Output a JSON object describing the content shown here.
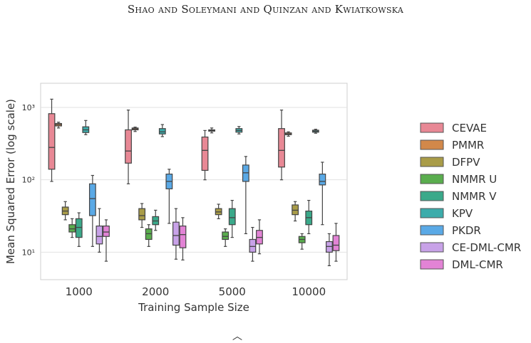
{
  "header": {
    "running_head": "Shao and Soleymani and Quinzan and Kwiatkowska"
  },
  "footer": {
    "mark": "︿"
  },
  "chart_data": {
    "type": "boxplot",
    "title": "",
    "xlabel": "Training Sample Size",
    "ylabel": "Mean Squared Error (log scale)",
    "yscale": "log",
    "ylim": [
      5,
      1800
    ],
    "yticks": [
      10,
      100,
      1000
    ],
    "ytick_labels": [
      "10¹",
      "10²",
      "10³"
    ],
    "grid": true,
    "legend_position": "right",
    "categories": [
      "1000",
      "2000",
      "5000",
      "10000"
    ],
    "series": [
      {
        "name": "CEVAE",
        "color": "#e88895",
        "boxes": [
          {
            "whislo": 95,
            "q1": 140,
            "med": 280,
            "q3": 820,
            "whishi": 1300
          },
          {
            "whislo": 88,
            "q1": 170,
            "med": 250,
            "q3": 490,
            "whishi": 920
          },
          {
            "whislo": 100,
            "q1": 135,
            "med": 255,
            "q3": 390,
            "whishi": 480
          },
          {
            "whislo": 100,
            "q1": 150,
            "med": 255,
            "q3": 510,
            "whishi": 920
          }
        ]
      },
      {
        "name": "PMMR",
        "color": "#d2884a",
        "boxes": [
          {
            "whislo": 520,
            "q1": 555,
            "med": 580,
            "q3": 600,
            "whishi": 625
          },
          {
            "whislo": 465,
            "q1": 490,
            "med": 505,
            "q3": 520,
            "whishi": 535
          },
          {
            "whislo": 445,
            "q1": 470,
            "med": 480,
            "q3": 490,
            "whishi": 520
          },
          {
            "whislo": 400,
            "q1": 420,
            "med": 430,
            "q3": 445,
            "whishi": 460
          }
        ]
      },
      {
        "name": "DFPV",
        "color": "#a99c48",
        "boxes": [
          {
            "whislo": 28,
            "q1": 33,
            "med": 37,
            "q3": 42,
            "whishi": 50
          },
          {
            "whislo": 22,
            "q1": 28,
            "med": 32,
            "q3": 40,
            "whishi": 47
          },
          {
            "whislo": 29,
            "q1": 33,
            "med": 36,
            "q3": 40,
            "whishi": 46
          },
          {
            "whislo": 27,
            "q1": 33,
            "med": 38,
            "q3": 45,
            "whishi": 50
          }
        ]
      },
      {
        "name": "NMMR U",
        "color": "#5aad4e",
        "boxes": [
          {
            "whislo": 16,
            "q1": 19,
            "med": 21,
            "q3": 24,
            "whishi": 29
          },
          {
            "whislo": 12,
            "q1": 15,
            "med": 18,
            "q3": 21,
            "whishi": 24
          },
          {
            "whislo": 12,
            "q1": 15,
            "med": 16.5,
            "q3": 19,
            "whishi": 21
          },
          {
            "whislo": 11,
            "q1": 13.5,
            "med": 15,
            "q3": 16.5,
            "whishi": 18
          }
        ]
      },
      {
        "name": "NMMR V",
        "color": "#3aa98a",
        "boxes": [
          {
            "whislo": 12,
            "q1": 16,
            "med": 22,
            "q3": 29,
            "whishi": 35
          },
          {
            "whislo": 20,
            "q1": 24,
            "med": 27,
            "q3": 31,
            "whishi": 38
          },
          {
            "whislo": 16,
            "q1": 24,
            "med": 30,
            "q3": 40,
            "whishi": 52
          },
          {
            "whislo": 18,
            "q1": 24,
            "med": 30,
            "q3": 37,
            "whishi": 52
          }
        ]
      },
      {
        "name": "KPV",
        "color": "#3cacab",
        "boxes": [
          {
            "whislo": 420,
            "q1": 450,
            "med": 490,
            "q3": 540,
            "whishi": 660
          },
          {
            "whislo": 395,
            "q1": 430,
            "med": 460,
            "q3": 510,
            "whishi": 580
          },
          {
            "whislo": 430,
            "q1": 455,
            "med": 480,
            "q3": 510,
            "whishi": 545
          },
          {
            "whislo": 440,
            "q1": 455,
            "med": 470,
            "q3": 485,
            "whishi": 500
          }
        ]
      },
      {
        "name": "PKDR",
        "color": "#5aa9e6",
        "boxes": [
          {
            "whislo": 12,
            "q1": 32,
            "med": 55,
            "q3": 88,
            "whishi": 115
          },
          {
            "whislo": 25,
            "q1": 75,
            "med": 95,
            "q3": 120,
            "whishi": 140
          },
          {
            "whislo": 18,
            "q1": 95,
            "med": 125,
            "q3": 160,
            "whishi": 210
          },
          {
            "whislo": 24,
            "q1": 85,
            "med": 95,
            "q3": 120,
            "whishi": 175
          }
        ]
      },
      {
        "name": "CE-DML-CMR",
        "color": "#c8a2e8",
        "boxes": [
          {
            "whislo": 10,
            "q1": 13,
            "med": 16.5,
            "q3": 23,
            "whishi": 40
          },
          {
            "whislo": 8,
            "q1": 12.5,
            "med": 17,
            "q3": 26,
            "whishi": 40
          },
          {
            "whislo": 7.5,
            "q1": 10,
            "med": 12,
            "q3": 15,
            "whishi": 22
          },
          {
            "whislo": 6.5,
            "q1": 10,
            "med": 12,
            "q3": 14,
            "whishi": 18
          }
        ]
      },
      {
        "name": "DML-CMR",
        "color": "#e283d5",
        "boxes": [
          {
            "whislo": 7.5,
            "q1": 16.5,
            "med": 19,
            "q3": 23,
            "whishi": 28
          },
          {
            "whislo": 7.8,
            "q1": 11.5,
            "med": 17.5,
            "q3": 23,
            "whishi": 30
          },
          {
            "whislo": 9.5,
            "q1": 13,
            "med": 16,
            "q3": 20,
            "whishi": 28
          },
          {
            "whislo": 7.5,
            "q1": 10.5,
            "med": 12.5,
            "q3": 17,
            "whishi": 25
          }
        ]
      }
    ]
  }
}
